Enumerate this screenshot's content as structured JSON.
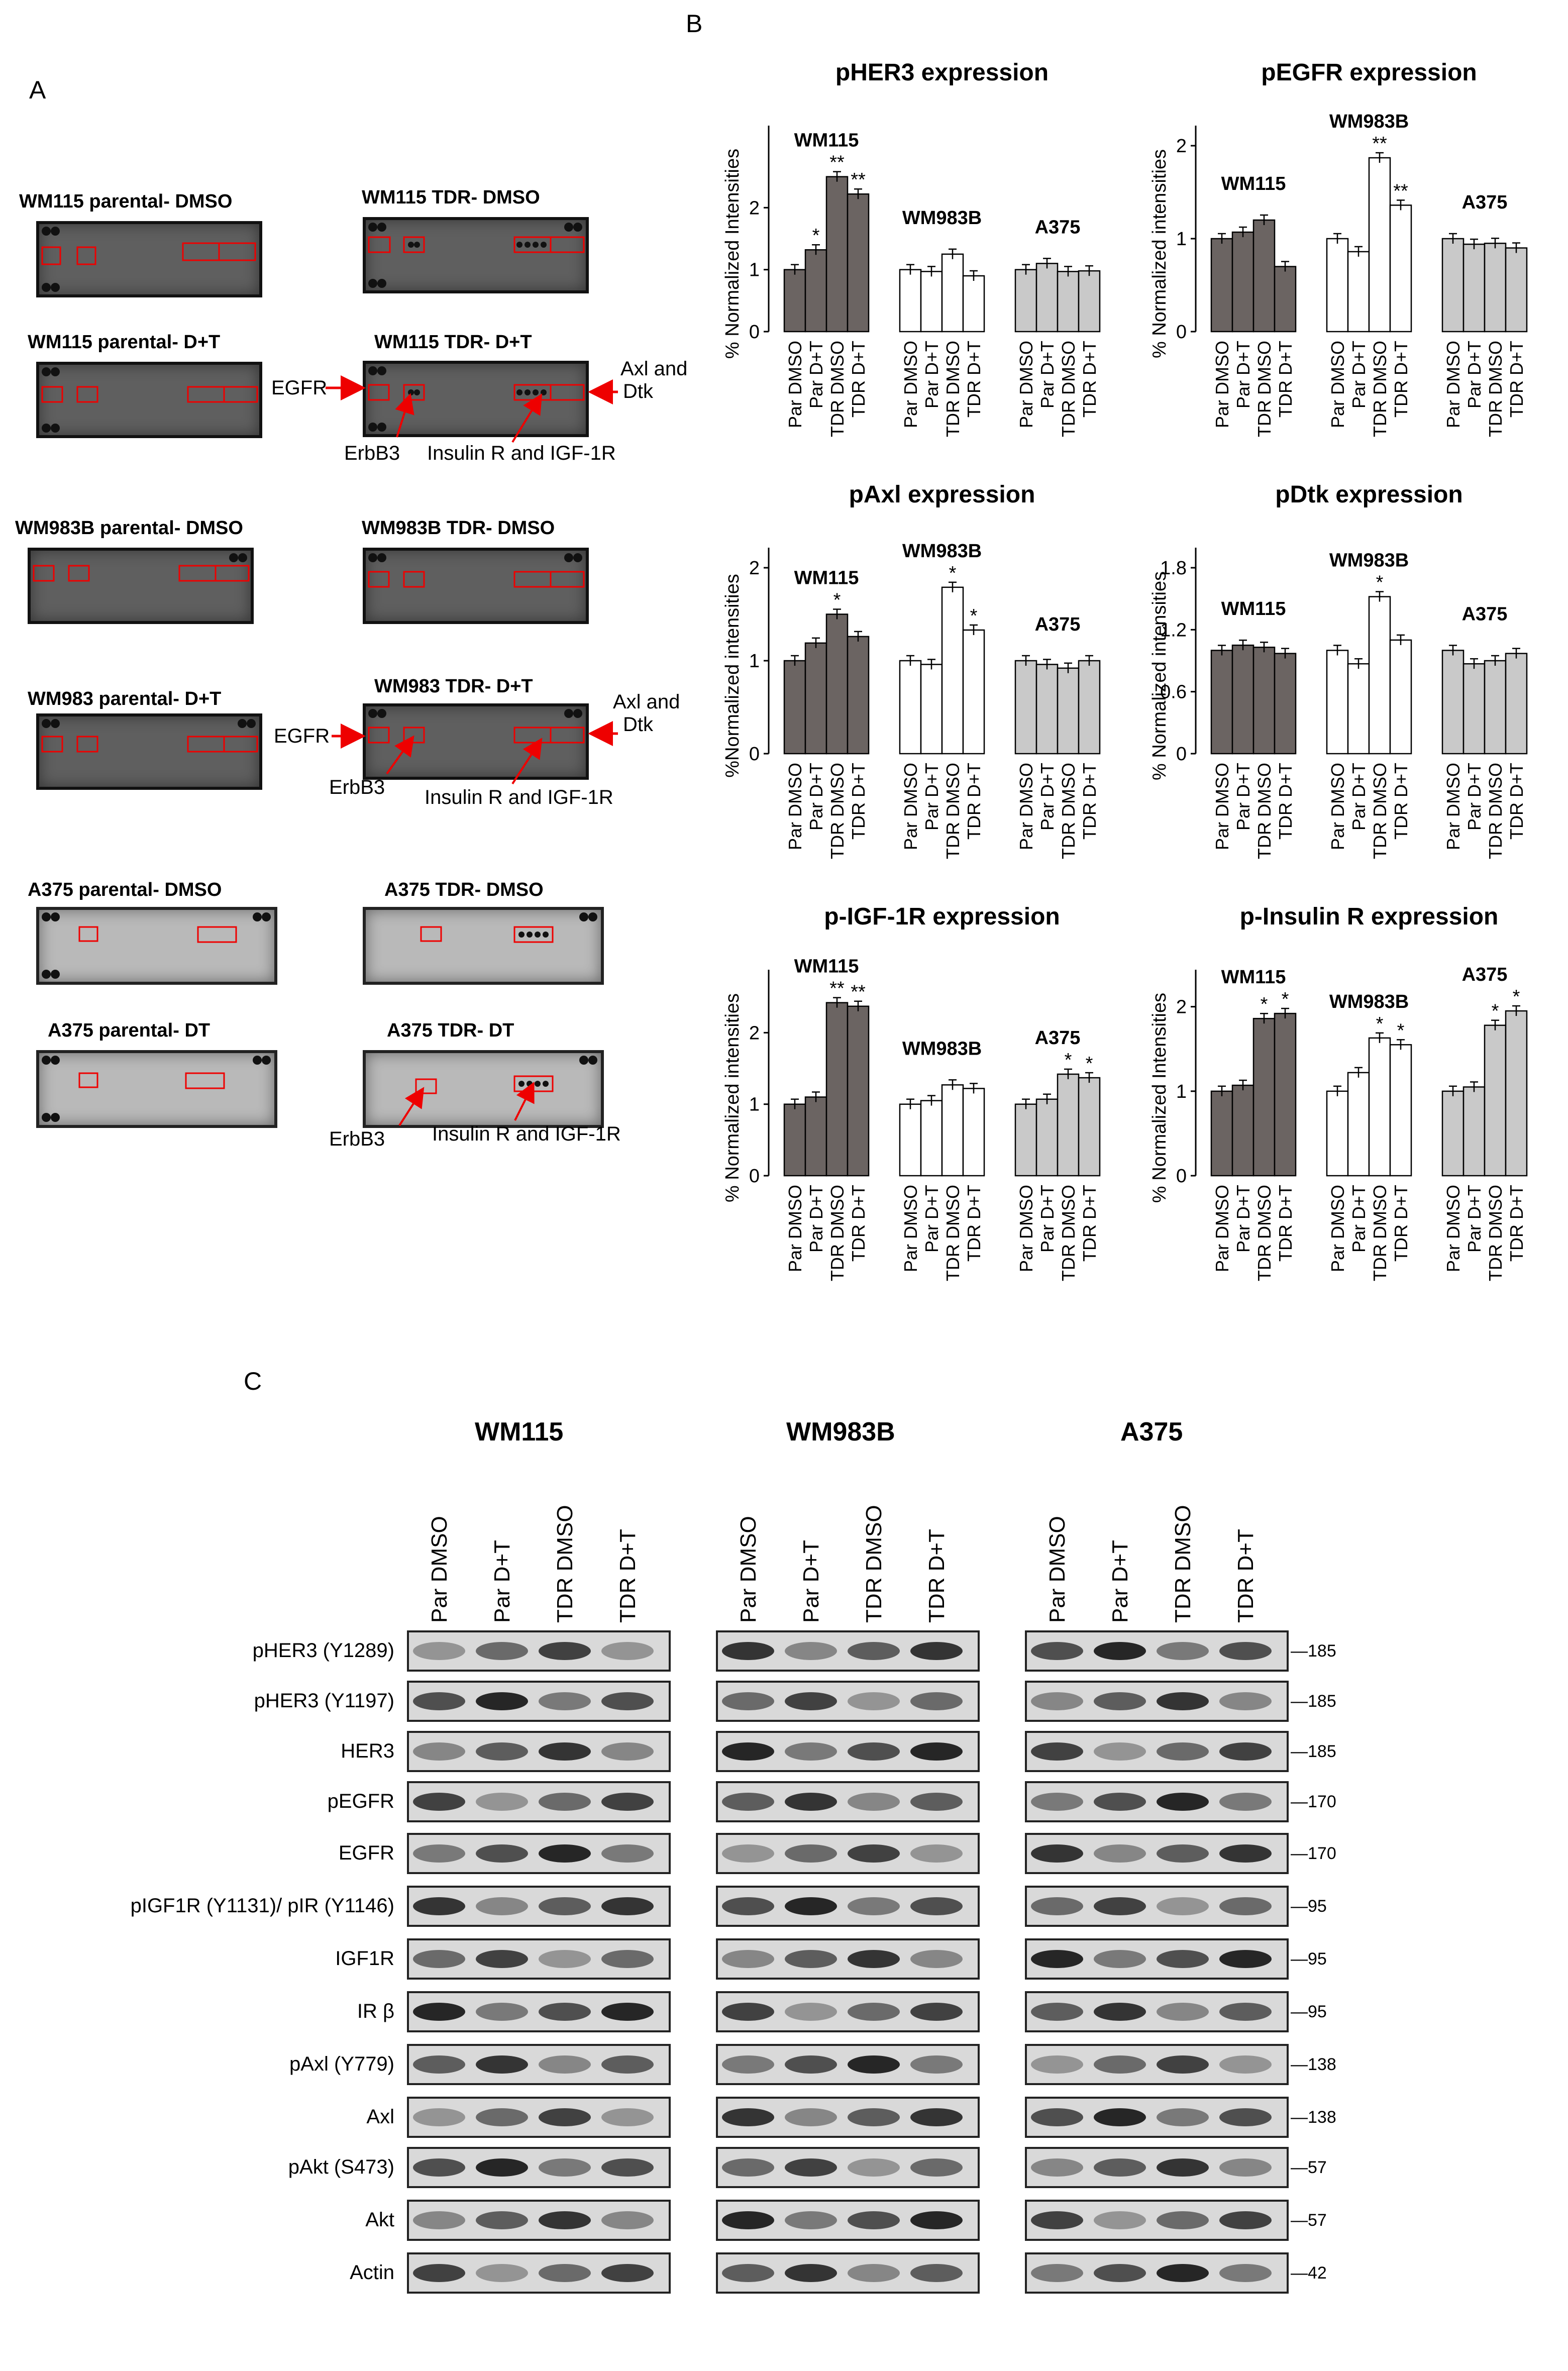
{
  "panel_labels": {
    "a": "A",
    "b": "B",
    "c": "C"
  },
  "arrays": {
    "blots": [
      {
        "label": "WM115 parental- DMSO"
      },
      {
        "label": "WM115 TDR- DMSO"
      },
      {
        "label": "WM115 parental- D+T"
      },
      {
        "label": "WM115 TDR- D+T"
      },
      {
        "label": "WM983B parental- DMSO"
      },
      {
        "label": "WM983B TDR- DMSO"
      },
      {
        "label": "WM983 parental- D+T"
      },
      {
        "label": "WM983 TDR- D+T"
      },
      {
        "label": "A375 parental- DMSO"
      },
      {
        "label": "A375 TDR- DMSO"
      },
      {
        "label": "A375 parental- DT"
      },
      {
        "label": "A375 TDR- DT"
      }
    ],
    "annotations": {
      "egfr": "EGFR",
      "erbb3": "ErbB3",
      "insulin_igf": "Insulin R and IGF-1R",
      "axl_line1": "Axl and",
      "axl_line2": "Dtk"
    }
  },
  "chart_data": [
    {
      "type": "bar",
      "title": "pHER3 expression",
      "ylabel": "% Normalized Intensities",
      "ylim": [
        0,
        3
      ],
      "yticks": [
        "0",
        "1",
        "2"
      ],
      "categories": [
        "Par DMSO",
        "Par D+T",
        "TDR DMSO",
        "TDR D+T"
      ],
      "series": [
        {
          "name": "WM115",
          "values": [
            1.0,
            1.32,
            2.5,
            2.22
          ],
          "stars": [
            "",
            "*",
            "**",
            "**"
          ],
          "color": "#6b6462"
        },
        {
          "name": "WM983B",
          "values": [
            1.0,
            0.97,
            1.25,
            0.9
          ],
          "stars": [
            "",
            "",
            "",
            ""
          ],
          "color": "#ffffff"
        },
        {
          "name": "A375",
          "values": [
            1.0,
            1.1,
            0.97,
            0.98
          ],
          "stars": [
            "",
            "",
            "",
            ""
          ],
          "color": "#c9c9c9"
        }
      ]
    },
    {
      "type": "bar",
      "title": "pEGFR expression",
      "ylabel": "% Normalized intensities",
      "ylim": [
        0,
        2
      ],
      "yticks": [
        "0",
        "1",
        "2"
      ],
      "categories": [
        "Par DMSO",
        "Par D+T",
        "TDR DMSO",
        "TDR D+T"
      ],
      "series": [
        {
          "name": "WM115",
          "values": [
            1.0,
            1.07,
            1.2,
            0.7
          ],
          "stars": [
            "",
            "",
            "",
            ""
          ],
          "color": "#6b6462"
        },
        {
          "name": "WM983B",
          "values": [
            1.0,
            0.86,
            1.87,
            1.36
          ],
          "stars": [
            "",
            "",
            "**",
            "**"
          ],
          "color": "#ffffff"
        },
        {
          "name": "A375",
          "values": [
            1.0,
            0.94,
            0.95,
            0.9
          ],
          "stars": [
            "",
            "",
            "",
            ""
          ],
          "color": "#c9c9c9"
        }
      ]
    },
    {
      "type": "bar",
      "title": "pAxl expression",
      "ylabel": "%Normalized intensities",
      "ylim": [
        0,
        2
      ],
      "yticks": [
        "0",
        "1",
        "2"
      ],
      "categories": [
        "Par DMSO",
        "Par D+T",
        "TDR DMSO",
        "TDR D+T"
      ],
      "series": [
        {
          "name": "WM115",
          "values": [
            1.0,
            1.19,
            1.5,
            1.26
          ],
          "stars": [
            "",
            "",
            "*",
            ""
          ],
          "color": "#6b6462"
        },
        {
          "name": "WM983B",
          "values": [
            1.0,
            0.96,
            1.79,
            1.33
          ],
          "stars": [
            "",
            "",
            "*",
            "*"
          ],
          "color": "#ffffff"
        },
        {
          "name": "A375",
          "values": [
            1.0,
            0.96,
            0.92,
            1.0
          ],
          "stars": [
            "",
            "",
            "",
            ""
          ],
          "color": "#c9c9c9"
        }
      ]
    },
    {
      "type": "bar",
      "title": "pDtk expression",
      "ylabel": "% Normalized intensities",
      "ylim": [
        0,
        1.8
      ],
      "yticks": [
        "0",
        "0.6",
        "1.2",
        "1.8"
      ],
      "categories": [
        "Par DMSO",
        "Par D+T",
        "TDR DMSO",
        "TDR D+T"
      ],
      "series": [
        {
          "name": "WM115",
          "values": [
            1.0,
            1.05,
            1.03,
            0.97
          ],
          "stars": [
            "",
            "",
            "",
            ""
          ],
          "color": "#6b6462"
        },
        {
          "name": "WM983B",
          "values": [
            1.0,
            0.87,
            1.52,
            1.1
          ],
          "stars": [
            "",
            "",
            "*",
            ""
          ],
          "color": "#ffffff"
        },
        {
          "name": "A375",
          "values": [
            1.0,
            0.87,
            0.9,
            0.97
          ],
          "stars": [
            "",
            "",
            "",
            ""
          ],
          "color": "#c9c9c9"
        }
      ]
    },
    {
      "type": "bar",
      "title": "p-IGF-1R expression",
      "ylabel": "% Normalized intensities",
      "ylim": [
        0,
        2.6
      ],
      "yticks": [
        "0",
        "1",
        "2"
      ],
      "categories": [
        "Par DMSO",
        "Par D+T",
        "TDR DMSO",
        "TDR D+T"
      ],
      "series": [
        {
          "name": "WM115",
          "values": [
            1.0,
            1.1,
            2.42,
            2.37
          ],
          "stars": [
            "",
            "",
            "**",
            "**"
          ],
          "color": "#6b6462"
        },
        {
          "name": "WM983B",
          "values": [
            1.0,
            1.05,
            1.27,
            1.22
          ],
          "stars": [
            "",
            "",
            "",
            ""
          ],
          "color": "#ffffff"
        },
        {
          "name": "A375",
          "values": [
            1.0,
            1.07,
            1.42,
            1.37
          ],
          "stars": [
            "",
            "",
            "*",
            "*"
          ],
          "color": "#c9c9c9"
        }
      ]
    },
    {
      "type": "bar",
      "title": "p-Insulin R expression",
      "ylabel": "% Normalized Intensities",
      "ylim": [
        0,
        2.2
      ],
      "yticks": [
        "0",
        "1",
        "2"
      ],
      "categories": [
        "Par DMSO",
        "Par D+T",
        "TDR DMSO",
        "TDR D+T"
      ],
      "series": [
        {
          "name": "WM115",
          "values": [
            1.0,
            1.07,
            1.86,
            1.92
          ],
          "stars": [
            "",
            "",
            "*",
            "*"
          ],
          "color": "#6b6462"
        },
        {
          "name": "WM983B",
          "values": [
            1.0,
            1.22,
            1.63,
            1.55
          ],
          "stars": [
            "",
            "",
            "*",
            "*"
          ],
          "color": "#ffffff"
        },
        {
          "name": "A375",
          "values": [
            1.0,
            1.05,
            1.78,
            1.95
          ],
          "stars": [
            "",
            "",
            "*",
            "*"
          ],
          "color": "#c9c9c9"
        }
      ]
    }
  ],
  "western": {
    "groups": [
      "WM115",
      "WM983B",
      "A375"
    ],
    "lanes": [
      "Par DMSO",
      "Par D+T",
      "TDR DMSO",
      "TDR D+T"
    ],
    "rows": [
      {
        "label": "pHER3 (Y1289)",
        "mw": "185"
      },
      {
        "label": "pHER3 (Y1197)",
        "mw": "185"
      },
      {
        "label": "HER3",
        "mw": "185"
      },
      {
        "label": "pEGFR",
        "mw": "170"
      },
      {
        "label": "EGFR",
        "mw": "170"
      },
      {
        "label": "pIGF1R (Y1131)/ pIR (Y1146)",
        "mw": "95"
      },
      {
        "label": "IGF1R",
        "mw": "95"
      },
      {
        "label": "IR β",
        "mw": "95"
      },
      {
        "label": "pAxl (Y779)",
        "mw": "138"
      },
      {
        "label": "Axl",
        "mw": "138"
      },
      {
        "label": "pAkt (S473)",
        "mw": "57"
      },
      {
        "label": "Akt",
        "mw": "57"
      },
      {
        "label": "Actin",
        "mw": "42"
      }
    ]
  }
}
